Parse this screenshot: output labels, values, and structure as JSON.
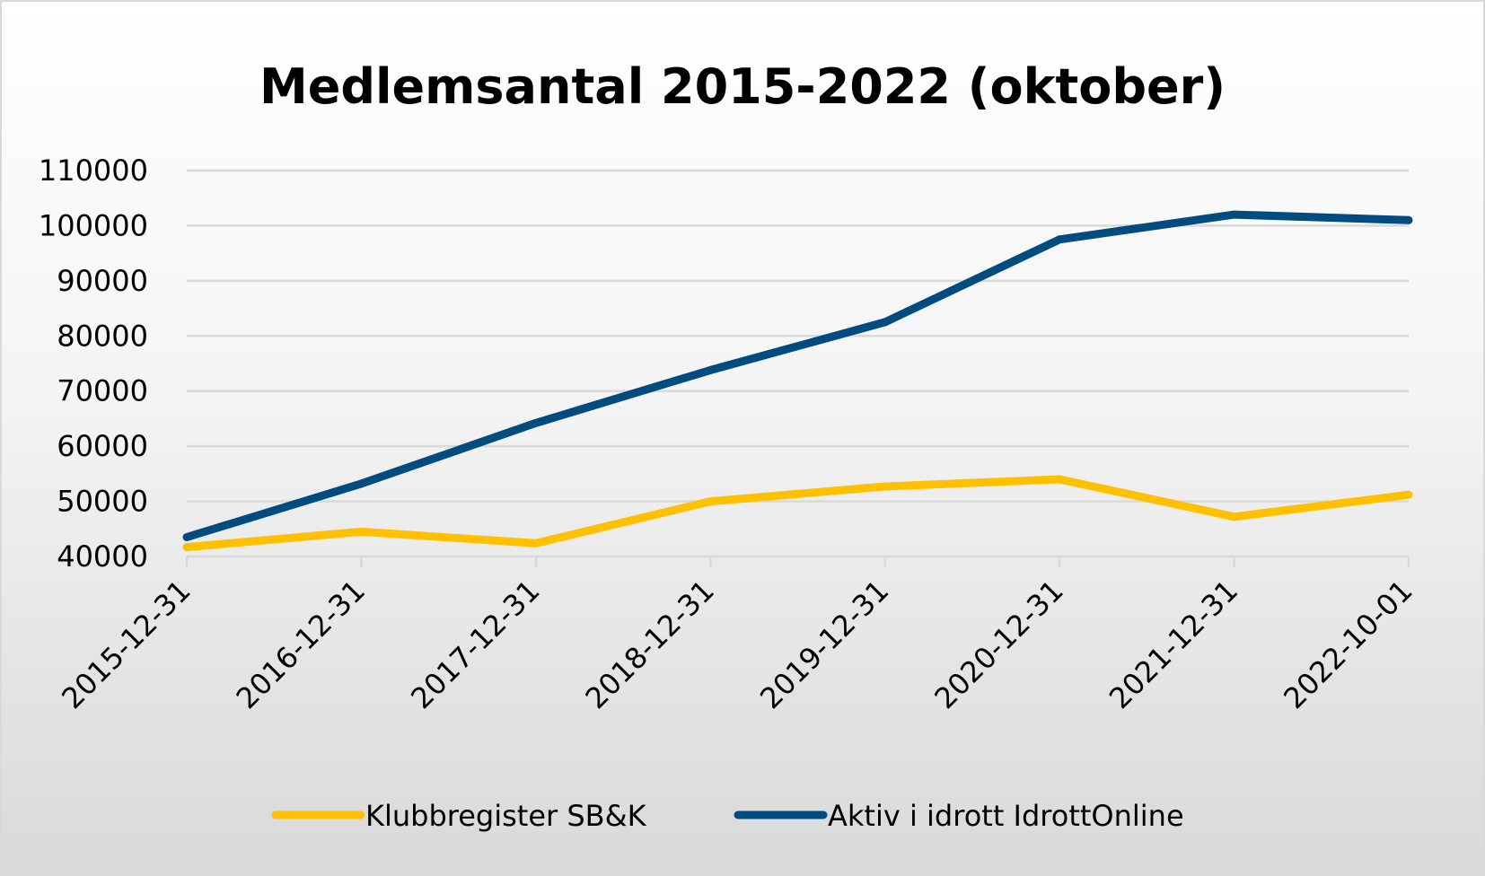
{
  "chart_data": {
    "type": "line",
    "title": "Medlemsantal 2015-2022 (oktober)",
    "xlabel": "",
    "ylabel": "",
    "categories": [
      "2015-12-31",
      "2016-12-31",
      "2017-12-31",
      "2018-12-31",
      "2019-12-31",
      "2020-12-31",
      "2021-12-31",
      "2022-10-01"
    ],
    "ylim": [
      40000,
      110000
    ],
    "yticks": [
      "40000",
      "50000",
      "60000",
      "70000",
      "80000",
      "90000",
      "100000",
      "110000"
    ],
    "grid": true,
    "legend_position": "bottom",
    "series": [
      {
        "name": "Klubbregister SB&K",
        "color": "#FFC000",
        "values": [
          41700,
          44500,
          42400,
          50000,
          52700,
          54000,
          47200,
          51200
        ]
      },
      {
        "name": "Aktiv i idrott IdrottOnline",
        "color": "#004B7F",
        "values": [
          43500,
          53200,
          64200,
          73800,
          82500,
          97500,
          102000,
          101000
        ]
      }
    ]
  }
}
